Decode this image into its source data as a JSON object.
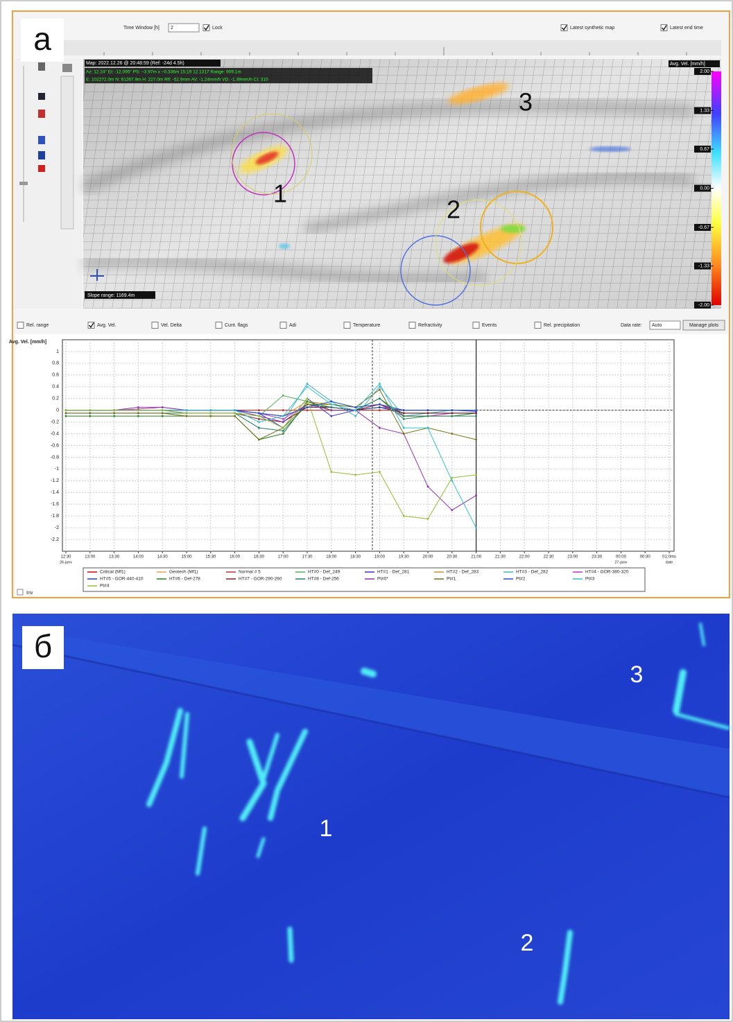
{
  "panel_a": {
    "label": "a",
    "toolbar": {
      "time_window_label": "Time Window [h]",
      "time_window": "2",
      "lock": {
        "label": "Lock",
        "checked": true
      },
      "latest_map": {
        "label": "Latest synthetic map",
        "checked": true
      },
      "latest_end": {
        "label": "Latest end time",
        "checked": true
      }
    },
    "map": {
      "title": "Map: 2022.12.26 @ 20:48:59 (Ref: -24d 4.5h)",
      "info": [
        "Az: 12.24°  El: -12.095°  PS: ~3.97m x ~0.336m  15:19  12.1317  Range: 909.1m",
        "E: 102272.0m  N: 61267.9m  H: 227.0m  Rfl: -52.9mm  AV: -1.24mm/h  VD: -1.39mm/h  CI: 310"
      ],
      "slope_range": "Slope range: 1169.4m",
      "annotations": [
        "1",
        "2",
        "3"
      ],
      "colorbar": {
        "title": "Avg. Vel. [mm/h]",
        "lim": [
          -2,
          2
        ],
        "ticks": [
          {
            "value": 2,
            "label": "2.00"
          },
          {
            "value": 1.33,
            "label": "1.33"
          },
          {
            "value": 0.67,
            "label": "0.67"
          },
          {
            "value": 0,
            "label": "0.00"
          },
          {
            "value": -0.67,
            "label": "-0.67"
          },
          {
            "value": -1.33,
            "label": "-1.33"
          },
          {
            "value": -2,
            "label": "-2.00"
          }
        ]
      }
    },
    "options": [
      {
        "label": "Rel. range",
        "checked": false
      },
      {
        "label": "Avg. Vel.",
        "checked": true
      },
      {
        "label": "Vel. Delta",
        "checked": false
      },
      {
        "label": "Cunt. flags",
        "checked": false
      },
      {
        "label": "Adi",
        "checked": false
      },
      {
        "label": "Temperature",
        "checked": false
      },
      {
        "label": "Refractivity",
        "checked": false
      },
      {
        "label": "Events",
        "checked": false
      },
      {
        "label": "Rel. precipitation",
        "checked": false
      }
    ],
    "data_rate_label": "Data rate:",
    "data_rate": "Auto",
    "manage": "Manage plots",
    "inv": "Inv"
  },
  "chart_data": {
    "type": "line",
    "y_label": "Avg. Vel. [mm/h]",
    "x": [
      12.5,
      13,
      13.5,
      14,
      14.5,
      15,
      15.5,
      16,
      16.5,
      17,
      17.5,
      18,
      18.5,
      19,
      19.5,
      20,
      20.5,
      21
    ],
    "xlim": [
      12.5,
      25
    ],
    "xticks": [
      {
        "value": 12.5,
        "label": "12:30"
      },
      {
        "value": 13,
        "label": "13:00"
      },
      {
        "value": 13.5,
        "label": "13:30"
      },
      {
        "value": 14,
        "label": "14:00"
      },
      {
        "value": 14.5,
        "label": "14:30"
      },
      {
        "value": 15,
        "label": "15:00"
      },
      {
        "value": 15.5,
        "label": "15:30"
      },
      {
        "value": 16,
        "label": "16:00"
      },
      {
        "value": 16.5,
        "label": "16:30"
      },
      {
        "value": 17,
        "label": "17:00"
      },
      {
        "value": 17.5,
        "label": "17:30"
      },
      {
        "value": 18,
        "label": "18:00"
      },
      {
        "value": 18.5,
        "label": "18:30"
      },
      {
        "value": 19,
        "label": "19:00"
      },
      {
        "value": 19.5,
        "label": "19:30"
      },
      {
        "value": 20,
        "label": "20:00"
      },
      {
        "value": 20.5,
        "label": "20:30"
      },
      {
        "value": 21,
        "label": "21:00"
      },
      {
        "value": 21.5,
        "label": "21:30"
      },
      {
        "value": 22,
        "label": "22:00"
      },
      {
        "value": 22.5,
        "label": "22:30"
      },
      {
        "value": 23,
        "label": "23:00"
      },
      {
        "value": 23.5,
        "label": "23:30"
      },
      {
        "value": 24,
        "label": "00:00"
      },
      {
        "value": 24.5,
        "label": "00:30"
      },
      {
        "value": 25,
        "label": "01:0ms"
      }
    ],
    "date_labels": [
      {
        "value": 12.5,
        "label": "26-janv"
      },
      {
        "value": 24,
        "label": "27-janv"
      },
      {
        "value": 25,
        "label": "date"
      }
    ],
    "ylim": [
      -2.4,
      1.2
    ],
    "yticks": [
      1,
      0.8,
      0.6,
      0.4,
      0.2,
      0,
      -0.2,
      -0.4,
      -0.6,
      -0.8,
      -1,
      -1.2,
      -1.4,
      -1.6,
      -1.8,
      -2,
      -2.2
    ],
    "grid": true,
    "cursor_x": 18.85,
    "now_x": 21,
    "series": [
      {
        "name": "Critical (Mf1)",
        "color": "#e00000",
        "values": [
          0,
          0,
          0,
          0,
          0,
          0,
          0,
          0,
          0,
          0,
          0,
          0,
          0,
          0,
          0,
          0,
          0,
          0
        ]
      },
      {
        "name": "Geotech (Mf1)",
        "color": "#f0a050",
        "values": [
          0,
          0,
          0,
          0,
          0,
          0,
          0,
          0,
          0,
          0,
          0,
          0,
          0,
          0,
          0,
          0,
          0,
          0
        ]
      },
      {
        "name": "Normal # 5",
        "color": "#c03030",
        "values": [
          0,
          0,
          0,
          0,
          0,
          0,
          0,
          0,
          0,
          0,
          0,
          0,
          0,
          0,
          0,
          0,
          0,
          0
        ]
      },
      {
        "name": "HT#0 - Def_249",
        "color": "#50b050",
        "values": [
          0,
          0,
          0,
          0,
          0,
          0,
          0,
          0,
          -0.1,
          0.25,
          0.15,
          0.05,
          0,
          0.05,
          0,
          0,
          0,
          0
        ]
      },
      {
        "name": "HT#1 - Def_281",
        "color": "#3030d0",
        "values": [
          0,
          0,
          0,
          0,
          0,
          0,
          0,
          0,
          -0.05,
          -0.3,
          0.2,
          -0.1,
          0,
          0.05,
          0,
          0,
          0,
          -0.02
        ]
      },
      {
        "name": "HT#2 - Def_283",
        "color": "#d09020",
        "values": [
          0,
          0,
          0,
          0,
          0,
          0,
          0,
          0,
          -0.05,
          -0.1,
          0.15,
          0.1,
          0.05,
          0.1,
          -0.05,
          -0.05,
          -0.05,
          -0.05
        ]
      },
      {
        "name": "HT#3 - Def_282",
        "color": "#40b0c0",
        "values": [
          0,
          0,
          0,
          0,
          0,
          0,
          0,
          0,
          -0.1,
          -0.2,
          0.45,
          0.15,
          -0.1,
          0.4,
          -0.1,
          -0.05,
          0,
          0
        ]
      },
      {
        "name": "HT#4 - GOR-380-320",
        "color": "#c030c0",
        "values": [
          0,
          0,
          0,
          0.02,
          0.05,
          0,
          0,
          0,
          -0.05,
          -0.15,
          0.1,
          0.05,
          0,
          0.1,
          -0.1,
          -0.1,
          -0.05,
          -0.05
        ]
      },
      {
        "name": "HT#5 - GOR-440-410",
        "color": "#2040a0",
        "values": [
          0,
          0,
          0,
          0,
          0,
          0,
          0,
          0,
          -0.05,
          -0.1,
          0.05,
          0.05,
          0,
          0.05,
          -0.05,
          -0.05,
          -0.05,
          -0.05
        ]
      },
      {
        "name": "HT#6 - Def-278",
        "color": "#208020",
        "values": [
          -0.1,
          -0.1,
          -0.1,
          -0.1,
          -0.1,
          -0.1,
          -0.1,
          -0.1,
          -0.5,
          -0.4,
          0.15,
          0,
          0,
          0.2,
          -0.1,
          -0.1,
          -0.1,
          -0.05
        ]
      },
      {
        "name": "HT#7 - GOR-290-260",
        "color": "#802020",
        "values": [
          0,
          0,
          0,
          0,
          0,
          -0.05,
          -0.05,
          -0.05,
          -0.15,
          -0.2,
          0.05,
          0.05,
          0,
          0.1,
          -0.05,
          -0.05,
          -0.05,
          -0.05
        ]
      },
      {
        "name": "HT#8 - Def-256",
        "color": "#208060",
        "values": [
          -0.05,
          -0.05,
          -0.05,
          -0.05,
          -0.05,
          -0.05,
          -0.05,
          -0.05,
          -0.3,
          -0.35,
          0.1,
          0.05,
          0,
          0.2,
          -0.15,
          -0.1,
          -0.1,
          -0.1
        ]
      },
      {
        "name": "Pt#0*",
        "color": "#9030b0",
        "values": [
          0,
          0,
          0,
          0.05,
          0.05,
          0,
          0,
          0,
          -0.1,
          -0.2,
          0.1,
          0,
          0,
          -0.3,
          -0.4,
          -1.3,
          -1.7,
          -1.45
        ]
      },
      {
        "name": "Pt#1",
        "color": "#707010",
        "values": [
          -0.05,
          -0.05,
          -0.05,
          -0.05,
          -0.05,
          -0.1,
          -0.1,
          -0.1,
          -0.5,
          -0.3,
          0.1,
          0.1,
          0.05,
          0.35,
          -0.4,
          -0.3,
          -0.4,
          -0.5
        ]
      },
      {
        "name": "Pt#2",
        "color": "#2050d0",
        "values": [
          0,
          0,
          0,
          0,
          0,
          0,
          0,
          0,
          -0.05,
          -0.1,
          0.05,
          0.15,
          0.05,
          0.1,
          0,
          0,
          0,
          0
        ]
      },
      {
        "name": "Pt#3",
        "color": "#30c0d0",
        "values": [
          0,
          0,
          0,
          0,
          0,
          0,
          0,
          0,
          -0.2,
          -0.1,
          0.4,
          0.1,
          0,
          0.45,
          -0.3,
          -0.3,
          -1.2,
          -2
        ]
      },
      {
        "name": "Pt#4",
        "color": "#90c030",
        "values": [
          0,
          0,
          0,
          0,
          0,
          -0.05,
          -0.05,
          -0.05,
          -0.1,
          -0.3,
          0.2,
          -1.05,
          -1.1,
          -1.05,
          -1.8,
          -1.85,
          -1.15,
          -1.1
        ]
      }
    ]
  },
  "panel_b": {
    "label": "б",
    "annotations": [
      "1",
      "2",
      "3"
    ]
  }
}
